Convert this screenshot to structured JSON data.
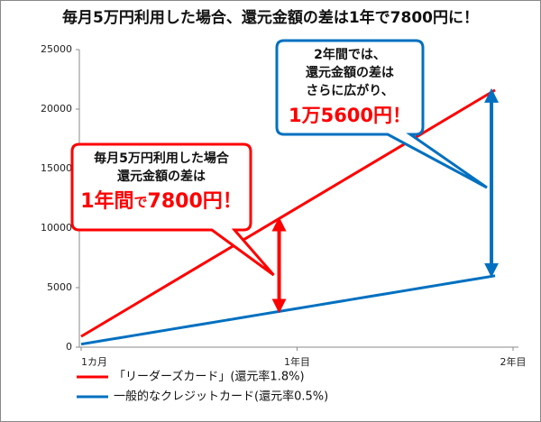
{
  "chart_data": {
    "type": "line",
    "title": "毎月5万円利用した場合、還元金額の差は1年で7800円に！",
    "x": [
      1,
      2,
      3,
      4,
      5,
      6,
      7,
      8,
      9,
      10,
      11,
      12,
      13,
      14,
      15,
      16,
      17,
      18,
      19,
      20,
      21,
      22,
      23,
      24
    ],
    "series": [
      {
        "name": "「リーダーズカード」(還元率1.8%)",
        "color": "#ff0000",
        "values": [
          900,
          1800,
          2700,
          3600,
          4500,
          5400,
          6300,
          7200,
          8100,
          9000,
          9900,
          10800,
          11700,
          12600,
          13500,
          14400,
          15300,
          16200,
          17100,
          18000,
          18900,
          19800,
          20700,
          21600
        ]
      },
      {
        "name": "一般的なクレジットカード(還元率0.5%)",
        "color": "#0070c0",
        "values": [
          250,
          500,
          750,
          1000,
          1250,
          1500,
          1750,
          2000,
          2250,
          2500,
          2750,
          3000,
          3250,
          3500,
          3750,
          4000,
          4250,
          4500,
          4750,
          5000,
          5250,
          5500,
          5750,
          6000
        ]
      }
    ],
    "xlim": [
      0.9,
      25.3
    ],
    "xticks": [
      {
        "value": 1,
        "label": "1カ月"
      },
      {
        "value": 13,
        "label": "1年目"
      },
      {
        "value": 25,
        "label": "2年目"
      }
    ],
    "ylim": [
      0,
      25000
    ],
    "yticks": [
      0,
      5000,
      10000,
      15000,
      20000,
      25000
    ],
    "grid": false,
    "annotations": [
      {
        "lines": [
          "毎月5万円利用した場合",
          "還元金額の差は"
        ],
        "highlight": [
          "1年間",
          "で",
          "7800円！"
        ]
      },
      {
        "lines": [
          "2年間では、",
          "還元金額の差は",
          "さらに広がり、"
        ],
        "highlight": [
          "1万5600円！"
        ]
      }
    ]
  }
}
